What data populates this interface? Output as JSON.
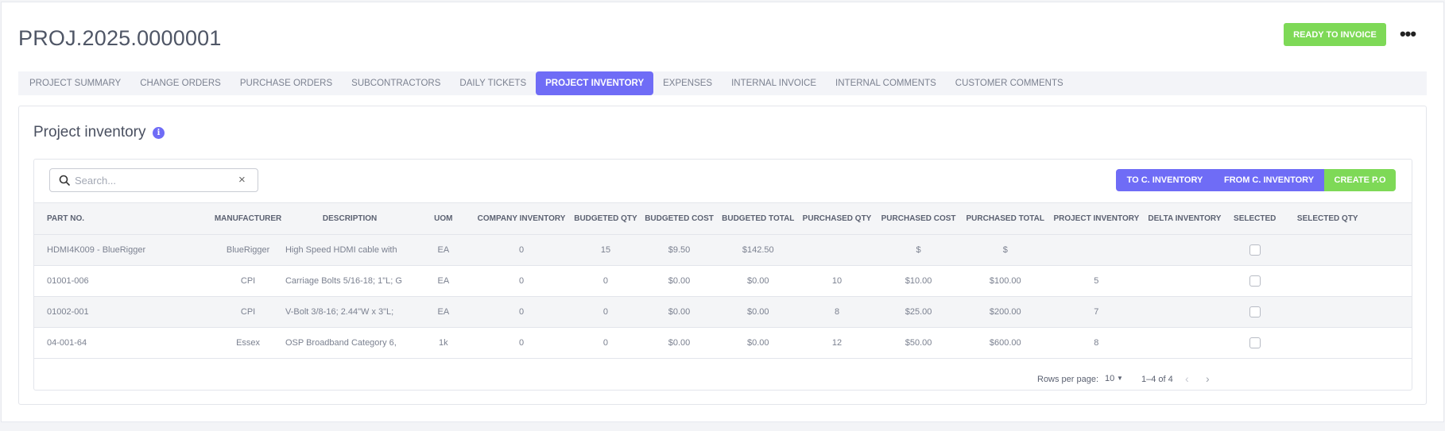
{
  "header": {
    "project_id": "PROJ.2025.0000001",
    "ready_label": "READY TO INVOICE",
    "more_icon": "more-horizontal-icon"
  },
  "tabs": [
    {
      "label": "PROJECT SUMMARY",
      "active": false
    },
    {
      "label": "CHANGE ORDERS",
      "active": false
    },
    {
      "label": "PURCHASE ORDERS",
      "active": false
    },
    {
      "label": "SUBCONTRACTORS",
      "active": false
    },
    {
      "label": "DAILY TICKETS",
      "active": false
    },
    {
      "label": "PROJECT INVENTORY",
      "active": true
    },
    {
      "label": "EXPENSES",
      "active": false
    },
    {
      "label": "INTERNAL INVOICE",
      "active": false
    },
    {
      "label": "INTERNAL COMMENTS",
      "active": false
    },
    {
      "label": "CUSTOMER COMMENTS",
      "active": false
    }
  ],
  "section": {
    "title": "Project inventory",
    "info_icon": "info-icon"
  },
  "search": {
    "placeholder": "Search...",
    "clear": "×"
  },
  "actions": {
    "to_inventory": "TO C. INVENTORY",
    "from_inventory": "FROM C. INVENTORY",
    "create_po": "CREATE P.O"
  },
  "table": {
    "headers": [
      "PART NO.",
      "MANUFACTURER",
      "DESCRIPTION",
      "UOM",
      "COMPANY INVENTORY",
      "BUDGETED QTY",
      "BUDGETED COST",
      "BUDGETED TOTAL",
      "PURCHASED QTY",
      "PURCHASED COST",
      "PURCHASED TOTAL",
      "PROJECT INVENTORY",
      "DELTA INVENTORY",
      "SELECTED",
      "SELECTED QTY"
    ],
    "rows": [
      {
        "part_no": "HDMI4K009 - BlueRigger",
        "manufacturer": "BlueRigger",
        "description": "High Speed HDMI cable with",
        "uom": "EA",
        "company_inventory": "0",
        "budgeted_qty": "15",
        "budgeted_cost": "$9.50",
        "budgeted_total": "$142.50",
        "purchased_qty": "",
        "purchased_cost": "$",
        "purchased_total": "$",
        "project_inventory": "",
        "delta_inventory": "",
        "selected": false,
        "selected_qty": ""
      },
      {
        "part_no": "01001-006",
        "manufacturer": "CPI",
        "description": "Carriage Bolts 5/16-18; 1\"L; G",
        "uom": "EA",
        "company_inventory": "0",
        "budgeted_qty": "0",
        "budgeted_cost": "$0.00",
        "budgeted_total": "$0.00",
        "purchased_qty": "10",
        "purchased_cost": "$10.00",
        "purchased_total": "$100.00",
        "project_inventory": "5",
        "delta_inventory": "",
        "selected": false,
        "selected_qty": ""
      },
      {
        "part_no": "01002-001",
        "manufacturer": "CPI",
        "description": "V-Bolt 3/8-16; 2.44\"W x 3\"L;",
        "uom": "EA",
        "company_inventory": "0",
        "budgeted_qty": "0",
        "budgeted_cost": "$0.00",
        "budgeted_total": "$0.00",
        "purchased_qty": "8",
        "purchased_cost": "$25.00",
        "purchased_total": "$200.00",
        "project_inventory": "7",
        "delta_inventory": "",
        "selected": false,
        "selected_qty": ""
      },
      {
        "part_no": "04-001-64",
        "manufacturer": "Essex",
        "description": "OSP Broadband Category 6,",
        "uom": "1k",
        "company_inventory": "0",
        "budgeted_qty": "0",
        "budgeted_cost": "$0.00",
        "budgeted_total": "$0.00",
        "purchased_qty": "12",
        "purchased_cost": "$50.00",
        "purchased_total": "$600.00",
        "project_inventory": "8",
        "delta_inventory": "",
        "selected": false,
        "selected_qty": ""
      }
    ]
  },
  "pagination": {
    "rows_per_page_label": "Rows per page:",
    "rows_per_page": "10",
    "range": "1–4 of 4",
    "prev": "‹",
    "next": "›"
  },
  "colors": {
    "accent": "#6f6cf6",
    "success": "#7ed957"
  }
}
